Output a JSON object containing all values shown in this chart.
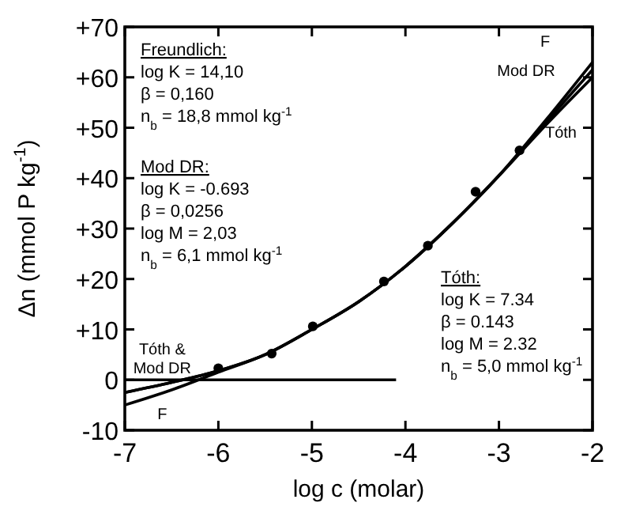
{
  "chart_data": {
    "type": "line",
    "xlabel": "log c (molar)",
    "ylabel": "Δn  (mmol P kg$^{-1}$)",
    "xlim": [
      -7,
      -2
    ],
    "ylim": [
      -10,
      70
    ],
    "xticks": [
      -7,
      -6,
      -5,
      -4,
      -3,
      -2
    ],
    "yticks": [
      {
        "value": -10,
        "label": "-10"
      },
      {
        "value": 0,
        "label": "0"
      },
      {
        "value": 10,
        "label": "+10"
      },
      {
        "value": 20,
        "label": "+20"
      },
      {
        "value": 30,
        "label": "+30"
      },
      {
        "value": 40,
        "label": "+40"
      },
      {
        "value": 50,
        "label": "+50"
      },
      {
        "value": 60,
        "label": "+60"
      },
      {
        "value": 70,
        "label": "+70"
      }
    ],
    "grid": false,
    "legend": "top right",
    "marker": "none",
    "line_style": "solid",
    "series": [
      {
        "name": "F",
        "color": "#000000",
        "x": [
          -7,
          -6.5,
          -6,
          -5.5,
          -5,
          -4.5,
          -4,
          -3.5,
          -3,
          -2.5,
          -2
        ],
        "values": [
          -5,
          -2,
          1.5,
          5,
          10,
          15.5,
          22.5,
          31,
          40.5,
          51.5,
          63
        ]
      },
      {
        "name": "Mod DR",
        "color": "#000000",
        "x": [
          -7,
          -6.5,
          -6,
          -5.5,
          -5,
          -4.5,
          -4,
          -3.5,
          -3,
          -2.5,
          -2
        ],
        "values": [
          -2.5,
          -0.5,
          1.8,
          5,
          10,
          15.5,
          22.5,
          31,
          40.5,
          51,
          61.5
        ]
      },
      {
        "name": "Tóth",
        "color": "#000000",
        "x": [
          -7,
          -6.5,
          -6,
          -5.5,
          -5,
          -4.5,
          -4,
          -3.5,
          -3,
          -2.5,
          -2
        ],
        "values": [
          -2.5,
          -0.5,
          1.8,
          5,
          10,
          15.5,
          22.5,
          31,
          40.5,
          50.5,
          60
        ]
      },
      {
        "type": "line",
        "color": "#000000",
        "x": [
          -7,
          -4.1
        ],
        "values": [
          0,
          0
        ]
      },
      {
        "type": "scatter",
        "marker": "circle",
        "color": "#000000",
        "x": [
          -6,
          -5.43,
          -4.99,
          -4.23,
          -3.76,
          -3.25,
          -2.78
        ],
        "values": [
          2.3,
          5.2,
          10.6,
          19.5,
          26.6,
          37.3,
          45.5
        ]
      }
    ],
    "annotations": [
      "Freundlich:\nlog K = 14,10\nβ = 0,160\nn$_{b}$ = 18,8 mmol kg$^{-1}$",
      "Mod DR:\nlog K = -0.693\nβ = 0,0256\nlog M = 2,03\nn$_{b}$ = 6,1 mmol kg$^{-1}$",
      "Tóth:\nlog K = 7.34\nβ = 0.143\nlog M = 2.32\nn$_{b}$ = 5,0 mmol kg$^{-1}$",
      {
        "text": "Tóth &\nMod DR",
        "x": -6.6,
        "y": -1.2
      },
      {
        "text": "F",
        "x": -6.6,
        "y": -3.4
      }
    ]
  }
}
